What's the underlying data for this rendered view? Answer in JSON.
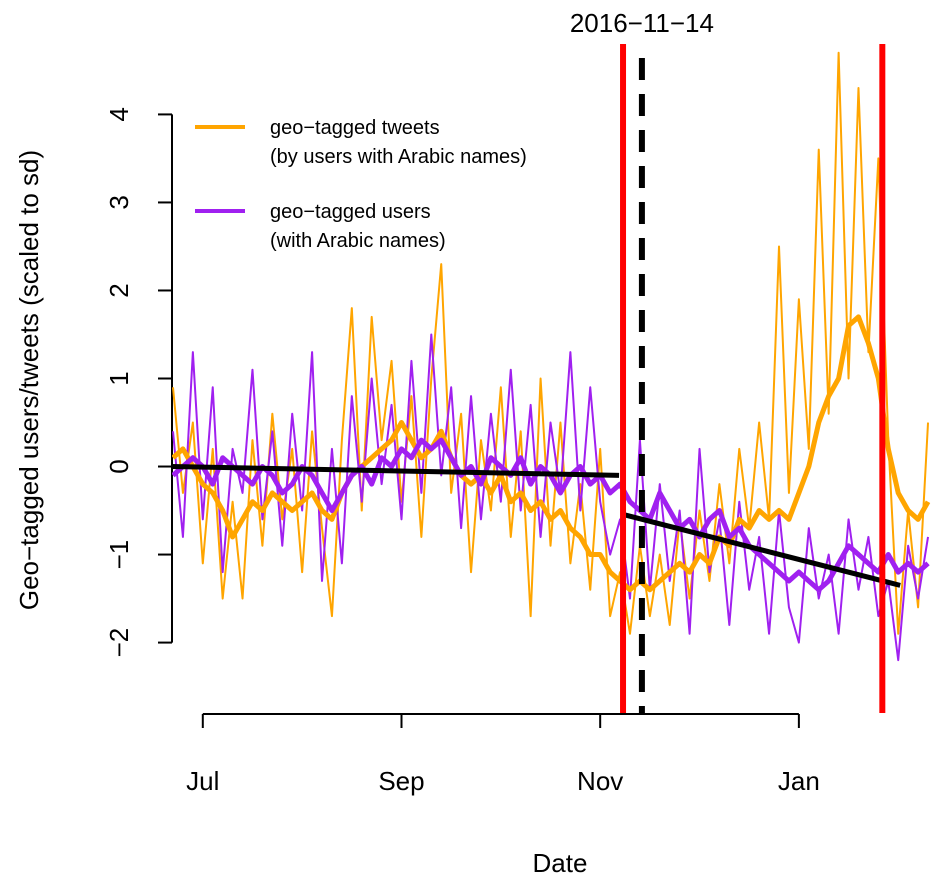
{
  "chart_data": {
    "type": "line",
    "annotation": {
      "x": 11.42,
      "text": "2016−11−14"
    },
    "xlabel": "Date",
    "ylabel": "Geo−tagged users/tweets (scaled to sd)",
    "xlim": [
      6.69,
      14.34
    ],
    "ylim": [
      -2.8,
      4.8
    ],
    "xticks": [
      {
        "value": 7,
        "label": "Jul"
      },
      {
        "value": 9,
        "label": "Sep"
      },
      {
        "value": 11,
        "label": "Nov"
      },
      {
        "value": 13,
        "label": "Jan"
      }
    ],
    "yticks": [
      {
        "value": -2,
        "label": "−2"
      },
      {
        "value": -1,
        "label": "−1"
      },
      0,
      1,
      2,
      3,
      4
    ],
    "x": [
      6.7,
      6.8,
      6.9,
      7.0,
      7.1,
      7.2,
      7.3,
      7.4,
      7.5,
      7.6,
      7.7,
      7.8,
      7.9,
      8.0,
      8.1,
      8.2,
      8.3,
      8.4,
      8.5,
      8.6,
      8.7,
      8.8,
      8.9,
      9.0,
      9.1,
      9.2,
      9.3,
      9.4,
      9.5,
      9.6,
      9.7,
      9.8,
      9.9,
      10.0,
      10.1,
      10.2,
      10.3,
      10.4,
      10.5,
      10.6,
      10.7,
      10.8,
      10.9,
      11.0,
      11.1,
      11.2,
      11.3,
      11.4,
      11.5,
      11.6,
      11.7,
      11.8,
      11.9,
      12.0,
      12.1,
      12.2,
      12.3,
      12.4,
      12.5,
      12.6,
      12.7,
      12.8,
      12.9,
      13.0,
      13.1,
      13.2,
      13.3,
      13.4,
      13.5,
      13.6,
      13.7,
      13.8,
      13.9,
      14.0,
      14.1,
      14.2,
      14.3
    ],
    "series": [
      {
        "color": "#ffa500",
        "width": 2,
        "values": [
          0.9,
          -0.3,
          0.5,
          -1.1,
          0.2,
          -1.5,
          -0.4,
          -1.5,
          0.3,
          -0.9,
          0.6,
          -0.6,
          0.2,
          -1.2,
          0.4,
          -0.7,
          -1.7,
          0.3,
          1.8,
          -0.5,
          1.7,
          0.3,
          1.2,
          -0.4,
          0.8,
          -0.8,
          1.0,
          2.3,
          -0.3,
          0.6,
          -1.2,
          0.3,
          -0.5,
          0.9,
          -0.8,
          0.4,
          -1.7,
          1.0,
          -0.9,
          0.5,
          -1.1,
          -0.2,
          -1.4,
          0.2,
          -1.7,
          -1.2,
          -1.9,
          -0.9,
          -1.7,
          -1.0,
          -1.8,
          -0.6,
          -1.5,
          -0.5,
          -1.3,
          -0.2,
          -1.1,
          0.2,
          -0.7,
          0.5,
          -0.6,
          2.5,
          -0.3,
          1.9,
          0.2,
          3.6,
          0.6,
          4.7,
          1.0,
          4.3,
          1.3,
          3.5,
          0.3,
          -1.9,
          -0.5,
          -1.6,
          0.5
        ]
      },
      {
        "color": "#a020f0",
        "width": 2,
        "values": [
          0.4,
          -0.8,
          1.3,
          -0.6,
          0.9,
          -1.2,
          0.2,
          -0.3,
          1.1,
          -0.6,
          0.4,
          -0.9,
          0.6,
          -0.5,
          1.3,
          -1.3,
          0.2,
          -1.1,
          0.8,
          -0.4,
          1.0,
          -0.2,
          0.7,
          -0.6,
          1.2,
          -0.3,
          1.5,
          -0.1,
          0.9,
          -0.7,
          0.8,
          -0.6,
          0.6,
          -0.4,
          1.1,
          -0.5,
          0.7,
          -0.8,
          0.5,
          -0.3,
          1.3,
          -0.5,
          0.9,
          -0.4,
          -1.0,
          -0.6,
          -1.5,
          0.3,
          -1.4,
          -0.2,
          -1.3,
          -0.5,
          -1.9,
          0.2,
          -1.2,
          -0.6,
          -1.8,
          -0.4,
          -1.4,
          -0.8,
          -1.9,
          -0.5,
          -1.6,
          -2.0,
          -0.7,
          -1.5,
          -1.0,
          -1.9,
          -0.6,
          -1.4,
          -0.8,
          -1.7,
          -1.3,
          -2.2,
          -0.9,
          -1.5,
          -0.8
        ]
      },
      {
        "name": "geo−tagged tweets\n(by users with Arabic names)",
        "color": "#ffa500",
        "width": 5,
        "values": [
          0.1,
          0.2,
          0.0,
          -0.2,
          -0.3,
          -0.5,
          -0.8,
          -0.6,
          -0.4,
          -0.5,
          -0.3,
          -0.4,
          -0.5,
          -0.4,
          -0.3,
          -0.5,
          -0.6,
          -0.3,
          -0.1,
          0.0,
          0.1,
          0.2,
          0.3,
          0.5,
          0.3,
          0.1,
          0.2,
          0.4,
          0.1,
          -0.1,
          -0.2,
          -0.1,
          -0.3,
          -0.1,
          -0.4,
          -0.3,
          -0.5,
          -0.4,
          -0.6,
          -0.5,
          -0.7,
          -0.8,
          -1.0,
          -1.0,
          -1.2,
          -1.3,
          -1.4,
          -1.3,
          -1.4,
          -1.3,
          -1.2,
          -1.1,
          -1.2,
          -1.0,
          -1.1,
          -0.8,
          -0.9,
          -0.6,
          -0.7,
          -0.5,
          -0.6,
          -0.5,
          -0.6,
          -0.3,
          0.0,
          0.5,
          0.8,
          1.0,
          1.6,
          1.7,
          1.4,
          1.0,
          0.2,
          -0.3,
          -0.5,
          -0.6,
          -0.4
        ]
      },
      {
        "name": "geo−tagged users\n(with Arabic names)",
        "color": "#a020f0",
        "width": 5,
        "values": [
          -0.1,
          0.0,
          0.1,
          0.0,
          -0.2,
          0.1,
          0.0,
          -0.1,
          -0.2,
          0.0,
          -0.1,
          -0.3,
          -0.2,
          0.0,
          -0.1,
          -0.3,
          -0.5,
          -0.3,
          -0.1,
          0.0,
          -0.2,
          0.1,
          0.0,
          0.2,
          0.1,
          0.3,
          0.2,
          0.3,
          0.1,
          -0.1,
          0.0,
          -0.2,
          0.1,
          0.0,
          -0.1,
          0.1,
          -0.2,
          0.0,
          -0.1,
          -0.3,
          -0.1,
          0.0,
          -0.2,
          -0.1,
          -0.3,
          -0.2,
          -0.4,
          -0.5,
          -0.6,
          -0.3,
          -0.5,
          -0.7,
          -0.6,
          -0.8,
          -0.6,
          -0.5,
          -0.8,
          -0.7,
          -0.9,
          -1.0,
          -1.1,
          -1.2,
          -1.3,
          -1.2,
          -1.3,
          -1.4,
          -1.3,
          -1.1,
          -0.9,
          -1.0,
          -1.1,
          -1.2,
          -1.0,
          -1.2,
          -1.1,
          -1.2,
          -1.1
        ]
      }
    ],
    "trend_lines": [
      {
        "color": "#000000",
        "x": [
          6.69,
          11.19
        ],
        "values": [
          0.0,
          -0.1
        ]
      },
      {
        "color": "#000000",
        "x": [
          11.25,
          14.02
        ],
        "values": [
          -0.55,
          -1.35
        ]
      }
    ],
    "vlines": [
      {
        "x": 11.23,
        "color": "#ff0000"
      },
      {
        "x": 13.84,
        "color": "#ff0000"
      }
    ]
  }
}
